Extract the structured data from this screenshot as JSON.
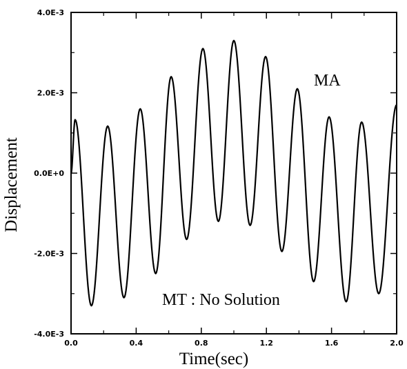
{
  "chart_data": {
    "type": "line",
    "title": "",
    "xlabel": "Time(sec)",
    "ylabel": "Displacement",
    "xlim": [
      0.0,
      2.0
    ],
    "ylim": [
      -0.004,
      0.004
    ],
    "x_ticks": [
      0.0,
      0.4,
      0.8,
      1.2,
      1.6,
      2.0
    ],
    "x_tick_labels": [
      "0.0",
      "0.4",
      "0.8",
      "1.2",
      "1.6",
      "2.0"
    ],
    "y_ticks": [
      -0.004,
      -0.002,
      0.0,
      0.002,
      0.004
    ],
    "y_tick_labels": [
      "-4.0E-3",
      "-2.0E-3",
      "0.0E+0",
      "2.0E-3",
      "4.0E-3"
    ],
    "grid": false,
    "annotations": [
      {
        "text": "MA"
      },
      {
        "text": "MT : No Solution"
      }
    ],
    "series": [
      {
        "x": [
          0.0,
          0.025,
          0.125,
          0.225,
          0.325,
          0.425,
          0.52,
          0.615,
          0.71,
          0.81,
          0.905,
          1.0,
          1.1,
          1.195,
          1.295,
          1.39,
          1.49,
          1.585,
          1.69,
          1.785,
          1.89,
          2.0
        ],
        "y": [
          0.0,
          0.00133,
          -0.0033,
          0.00117,
          -0.0031,
          0.0016,
          -0.0025,
          0.0024,
          -0.00165,
          0.0031,
          -0.0012,
          0.0033,
          -0.0013,
          0.0029,
          -0.00195,
          0.0021,
          -0.0027,
          0.0014,
          -0.0032,
          0.00127,
          -0.003,
          0.0017
        ]
      }
    ]
  }
}
